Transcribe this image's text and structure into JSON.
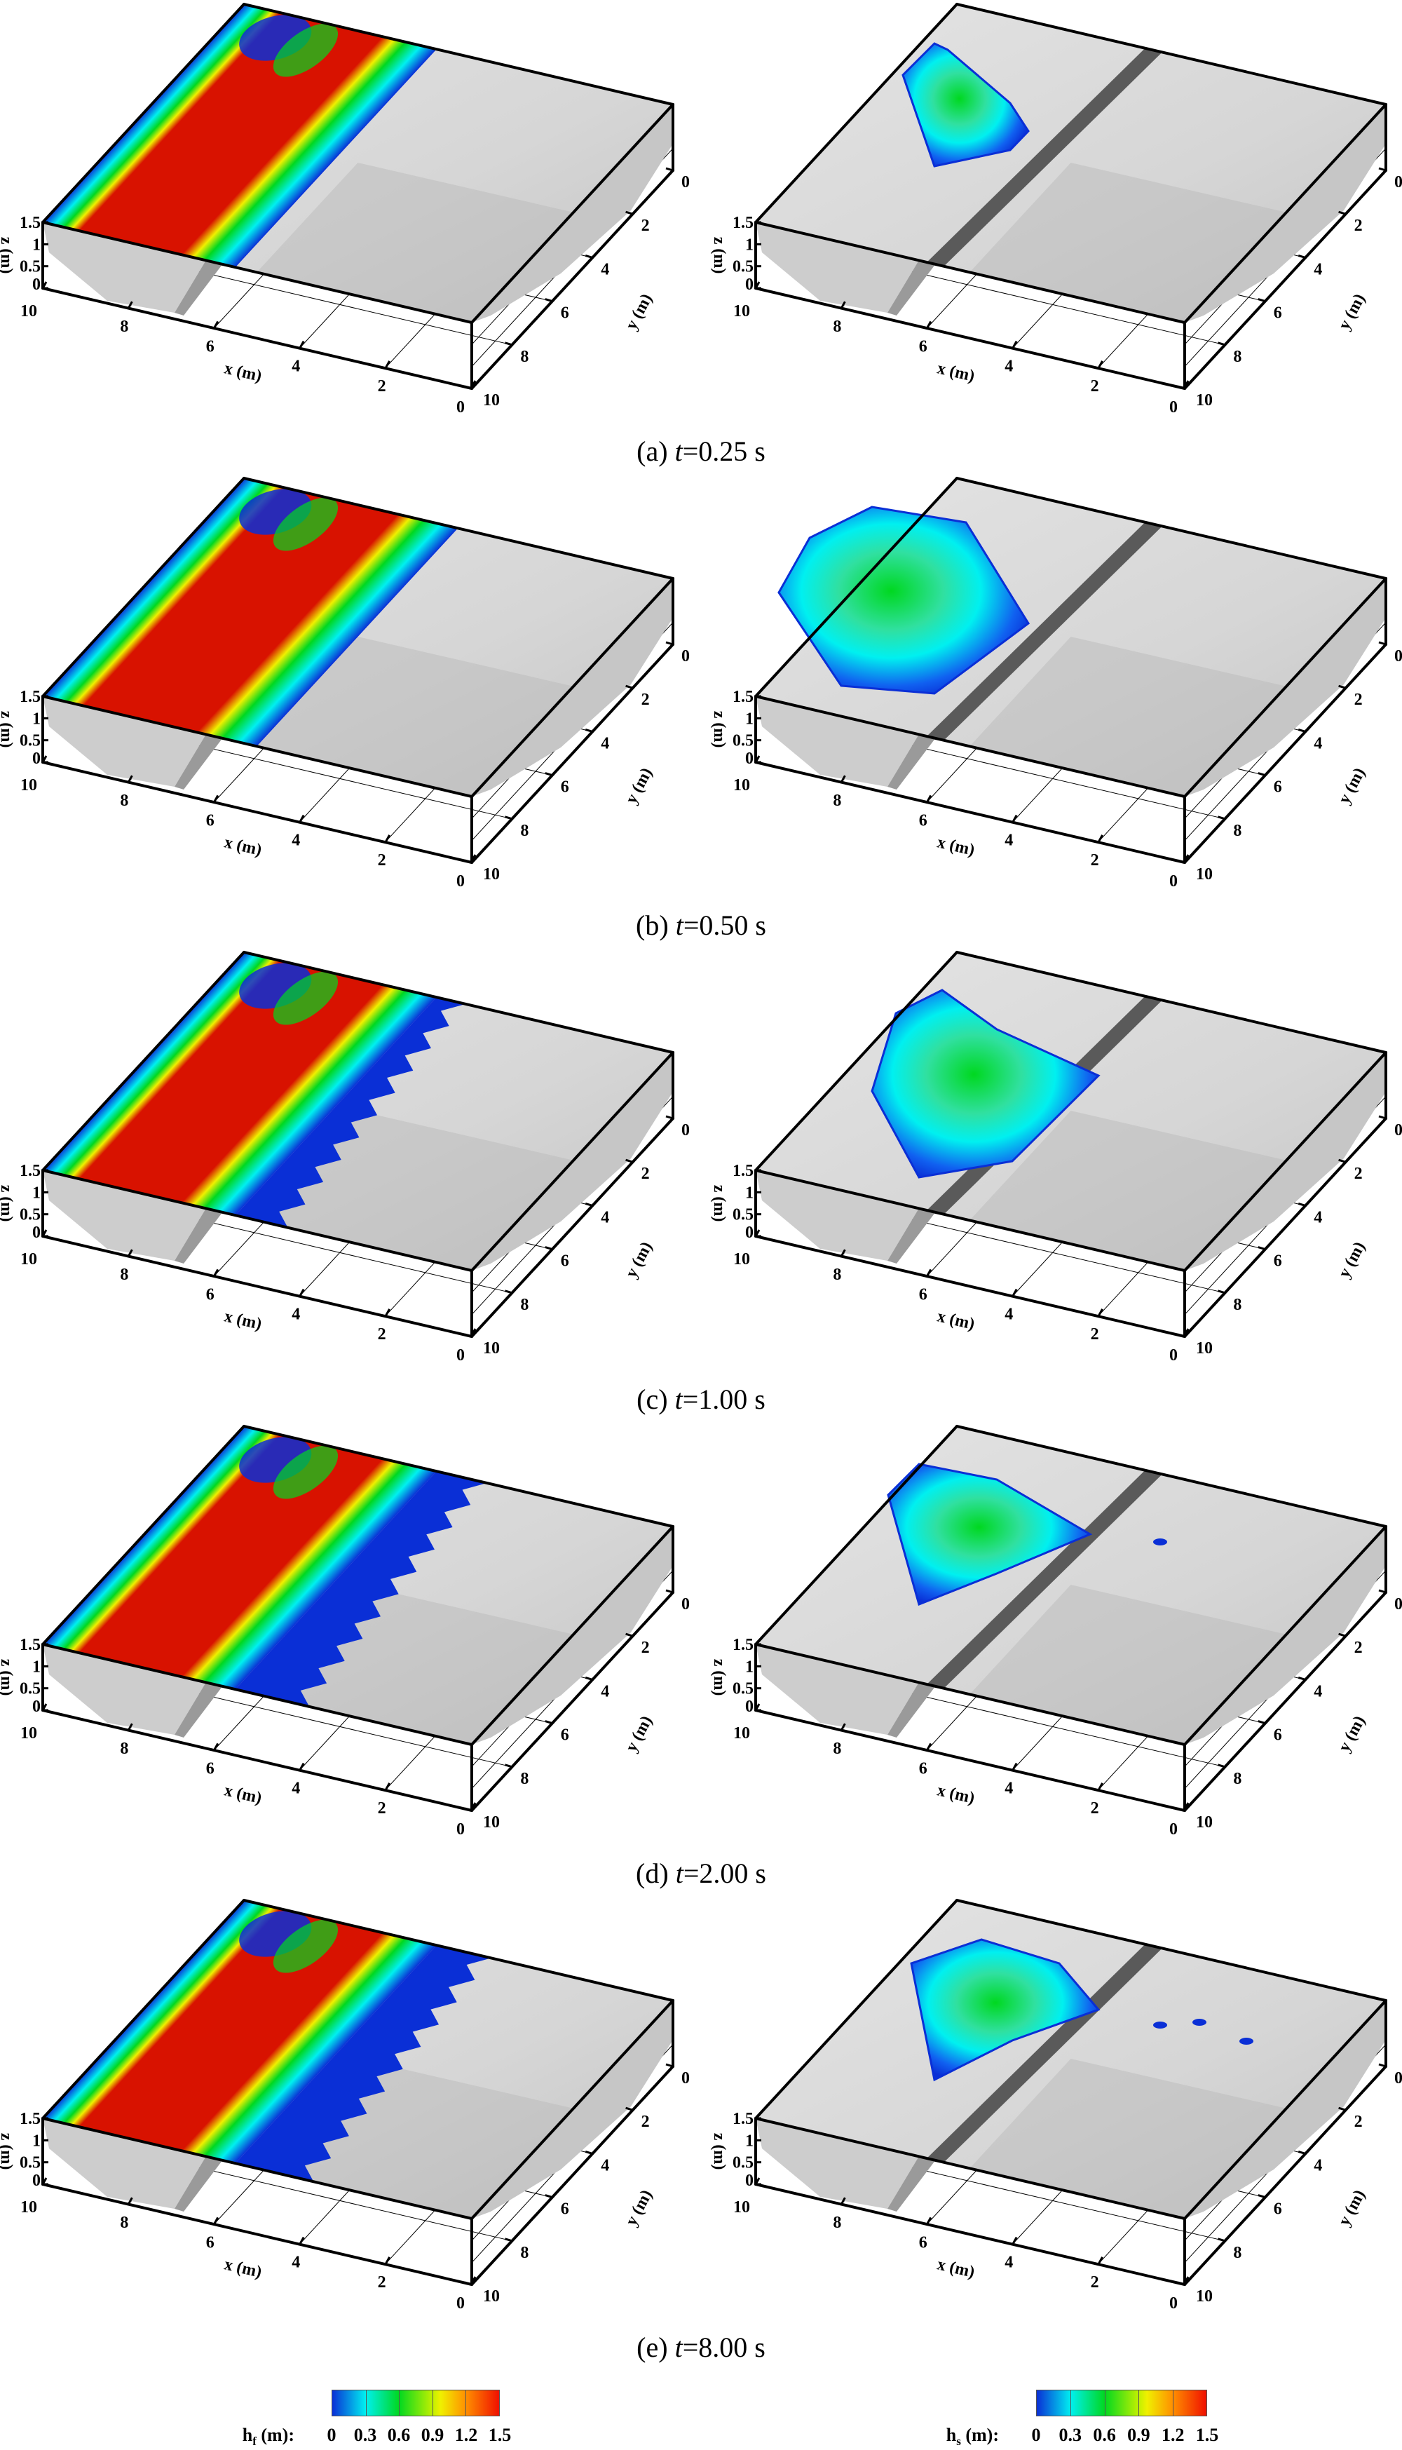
{
  "panels": [
    {
      "label": "(a)",
      "t_symbol": "t",
      "time": "=0.25 s"
    },
    {
      "label": "(b)",
      "t_symbol": "t",
      "time": "=0.50 s"
    },
    {
      "label": "(c)",
      "t_symbol": "t",
      "time": "=1.00 s"
    },
    {
      "label": "(d)",
      "t_symbol": "t",
      "time": "=2.00 s"
    },
    {
      "label": "(e)",
      "t_symbol": "t",
      "time": "=8.00 s"
    }
  ],
  "axes": {
    "x_label": "x (m)",
    "y_label": "y (m)",
    "z_label": "z (m)",
    "x_ticks": [
      "10",
      "8",
      "6",
      "4",
      "2",
      "0"
    ],
    "y_ticks": [
      "10",
      "8",
      "6",
      "4",
      "2",
      "0"
    ],
    "z_ticks": [
      "0",
      "0.5",
      "1",
      "1.5"
    ]
  },
  "colorbars": [
    {
      "symbol": "h",
      "subscript": "f",
      "unit": " (m):",
      "ticks": [
        "0",
        "0.3",
        "0.6",
        "0.9",
        "1.2",
        "1.5"
      ]
    },
    {
      "symbol": "h",
      "subscript": "s",
      "unit": " (m):",
      "ticks": [
        "0",
        "0.3",
        "0.6",
        "0.9",
        "1.2",
        "1.5"
      ]
    }
  ],
  "colors": {
    "blue": "#0a2fd6",
    "cyan": "#00f0f0",
    "green": "#00d820",
    "yellow": "#f0f000",
    "red": "#d81200",
    "terrain": "#d6d6d6",
    "terrain_dark": "#b4b4b4"
  }
}
